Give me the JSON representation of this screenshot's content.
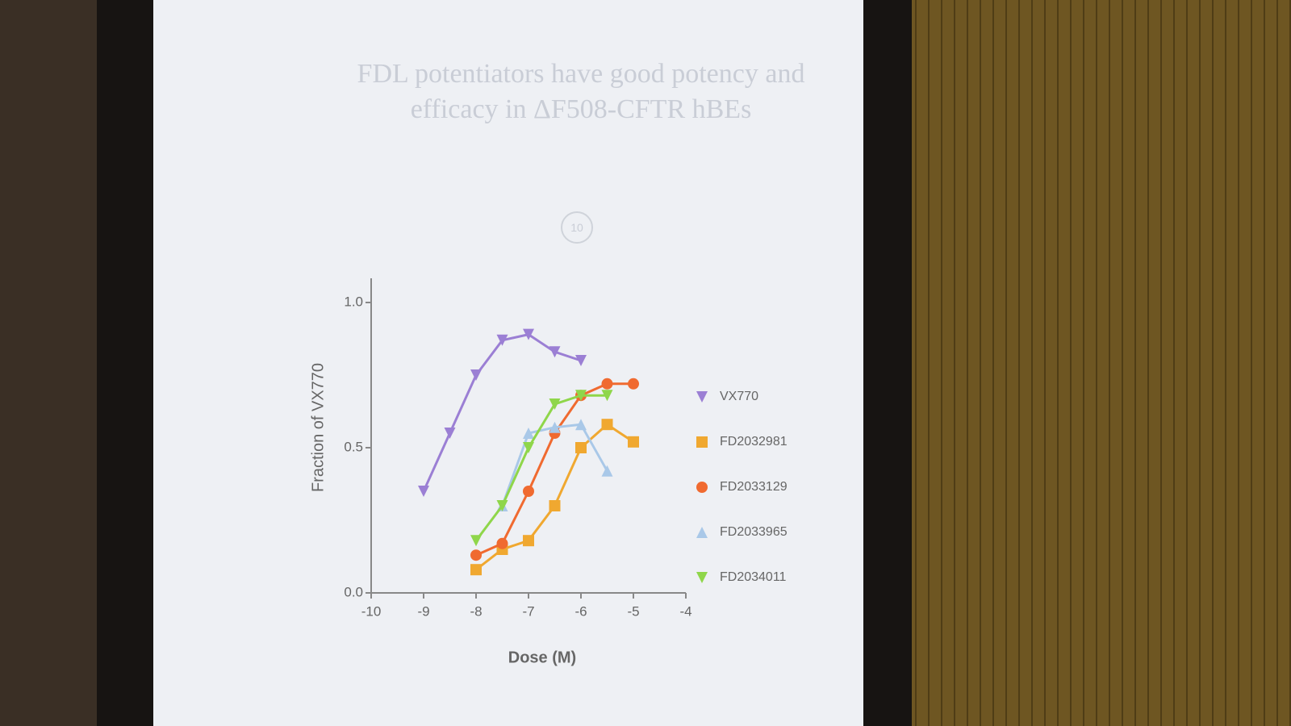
{
  "chart_data": {
    "type": "line",
    "title": "FDL potentiators have good potency and efficacy in ΔF508-CFTR hBEs",
    "slide_number": "10",
    "x_label": "Dose (M)",
    "y_label": "Fraction of VX770",
    "xlim": [
      -10,
      -4
    ],
    "xticks": [
      -10,
      -9,
      -8,
      -7,
      -6,
      -5,
      -4
    ],
    "ylim": [
      0,
      1
    ],
    "yticks": [
      {
        "value": 0,
        "label": "0.0"
      },
      0.5,
      {
        "value": 1,
        "label": "1.0"
      }
    ],
    "legend": "right",
    "series": [
      {
        "name": "VX770",
        "color": "#9b7fd4",
        "marker": "triangle-down",
        "x": [
          -9,
          -8.5,
          -8,
          -7.5,
          -7,
          -6.5,
          -6
        ],
        "values": [
          0.35,
          0.55,
          0.75,
          0.87,
          0.89,
          0.83,
          0.8
        ]
      },
      {
        "name": "FD2032981",
        "color": "#f0a830",
        "marker": "square",
        "x": [
          -8,
          -7.5,
          -7,
          -6.5,
          -6,
          -5.5,
          -5
        ],
        "values": [
          0.08,
          0.15,
          0.18,
          0.3,
          0.5,
          0.58,
          0.52
        ]
      },
      {
        "name": "FD2033129",
        "color": "#f06a30",
        "marker": "circle",
        "x": [
          -8,
          -7.5,
          -7,
          -6.5,
          -6,
          -5.5,
          -5
        ],
        "values": [
          0.13,
          0.17,
          0.35,
          0.55,
          0.68,
          0.72,
          0.72
        ]
      },
      {
        "name": "FD2033965",
        "color": "#a9c8e8",
        "marker": "triangle-up",
        "x": [
          -7.5,
          -7,
          -6.5,
          -6,
          -5.5
        ],
        "values": [
          0.3,
          0.55,
          0.57,
          0.58,
          0.42
        ]
      },
      {
        "name": "FD2034011",
        "color": "#8fd64a",
        "marker": "triangle-down",
        "x": [
          -8,
          -7.5,
          -7,
          -6.5,
          -6,
          -5.5
        ],
        "values": [
          0.18,
          0.3,
          0.5,
          0.65,
          0.68,
          0.68
        ]
      }
    ]
  }
}
